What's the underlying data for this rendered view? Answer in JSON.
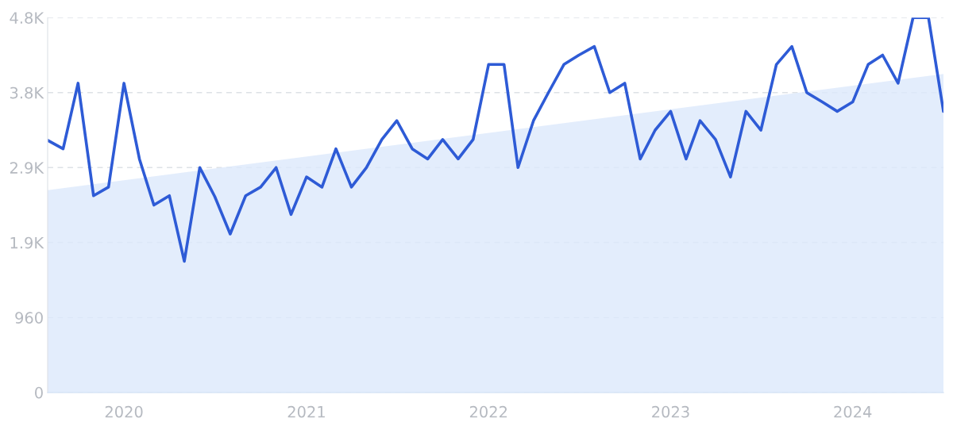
{
  "chart_data": {
    "type": "line",
    "x": [
      "2019-08",
      "2019-09",
      "2019-10",
      "2019-11",
      "2019-12",
      "2020-01",
      "2020-02",
      "2020-03",
      "2020-04",
      "2020-05",
      "2020-06",
      "2020-07",
      "2020-08",
      "2020-09",
      "2020-10",
      "2020-11",
      "2020-12",
      "2021-01",
      "2021-02",
      "2021-03",
      "2021-04",
      "2021-05",
      "2021-06",
      "2021-07",
      "2021-08",
      "2021-09",
      "2021-10",
      "2021-11",
      "2021-12",
      "2022-01",
      "2022-02",
      "2022-03",
      "2022-04",
      "2022-05",
      "2022-06",
      "2022-07",
      "2022-08",
      "2022-09",
      "2022-10",
      "2022-11",
      "2022-12",
      "2023-01",
      "2023-02",
      "2023-03",
      "2023-04",
      "2023-05",
      "2023-06",
      "2023-07",
      "2023-08",
      "2023-09",
      "2023-10",
      "2023-11",
      "2023-12",
      "2024-01",
      "2024-02",
      "2024-03",
      "2024-04",
      "2024-05",
      "2024-06",
      "2024-07"
    ],
    "series": [
      {
        "type": "area",
        "color": "#dce9fb",
        "x": [
          "2019-08",
          "2024-07"
        ],
        "values": [
          2590,
          4080
        ]
      },
      {
        "color": "#2e5bd6",
        "values": [
          3230,
          3120,
          3960,
          2520,
          2630,
          3960,
          2990,
          2400,
          2520,
          1680,
          2880,
          2510,
          2030,
          2520,
          2630,
          2880,
          2280,
          2760,
          2630,
          3120,
          2630,
          2880,
          3240,
          3480,
          3120,
          2990,
          3240,
          2990,
          3240,
          4200,
          4200,
          2880,
          3480,
          3840,
          4200,
          4320,
          4430,
          3840,
          3960,
          2990,
          3360,
          3600,
          2990,
          3480,
          3240,
          2760,
          3600,
          3360,
          4200,
          4430,
          3840,
          3720,
          3600,
          3720,
          4200,
          4320,
          3960,
          4800,
          4800,
          3600
        ]
      }
    ],
    "xlim": [
      "2019-08",
      "2024-07"
    ],
    "xticks": [
      {
        "value": "2020-01",
        "label": "2020"
      },
      {
        "value": "2021-01",
        "label": "2021"
      },
      {
        "value": "2022-01",
        "label": "2022"
      },
      {
        "value": "2023-01",
        "label": "2023"
      },
      {
        "value": "2024-01",
        "label": "2024"
      }
    ],
    "ylim": [
      0,
      4800
    ],
    "yticks": [
      0,
      960,
      {
        "value": 1920,
        "label": "1.9K"
      },
      {
        "value": 2880,
        "label": "2.9K"
      },
      {
        "value": 3840,
        "label": "3.8K"
      },
      {
        "value": 4800,
        "label": "4.8K"
      }
    ],
    "grid": "y",
    "line_style": "solid",
    "marker": "none"
  }
}
